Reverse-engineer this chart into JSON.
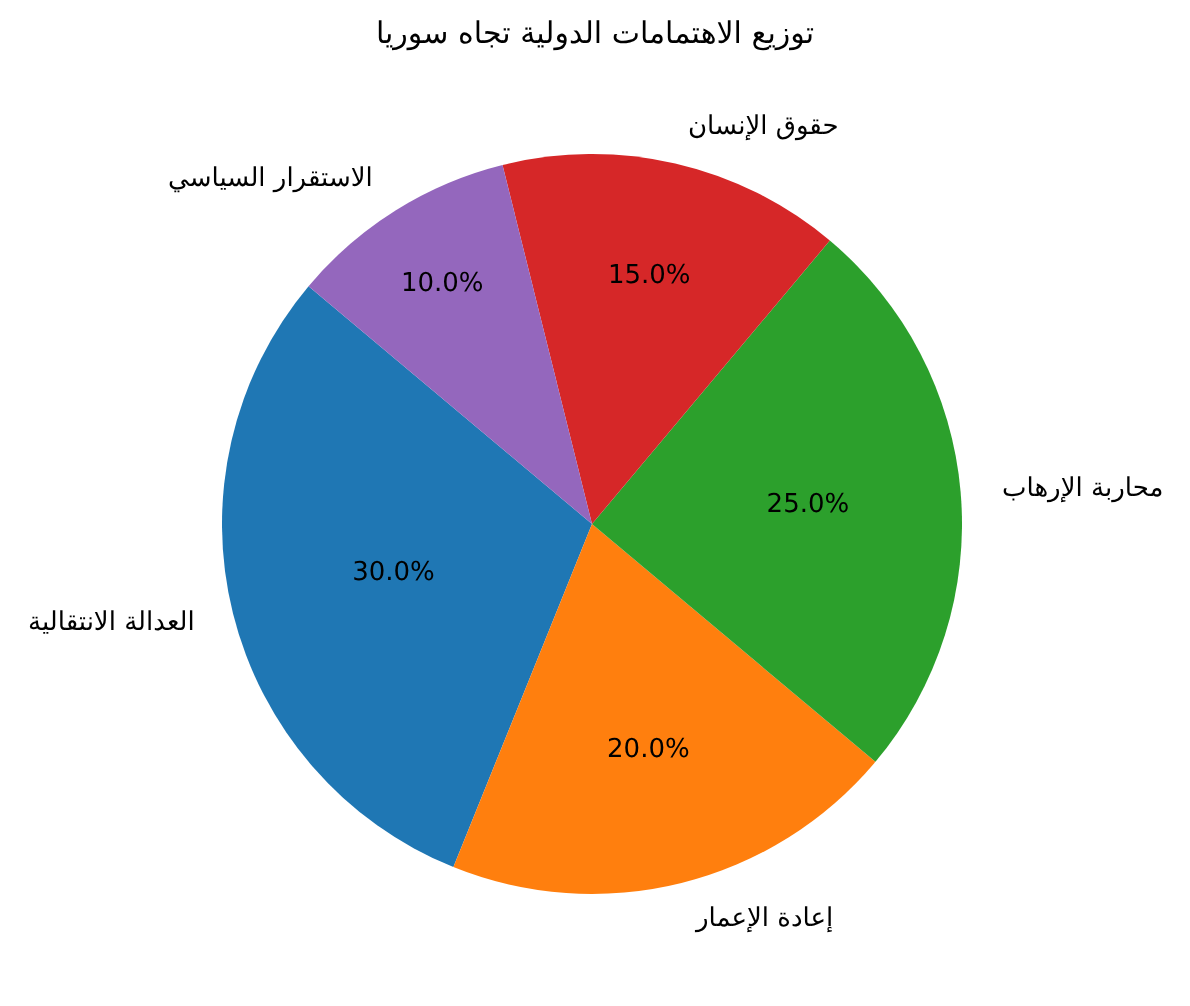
{
  "chart_data": {
    "type": "pie",
    "title": "توزيع الاهتمامات الدولية تجاه سوريا",
    "categories": [
      "العدالة الانتقالية",
      "إعادة الإعمار",
      "محاربة الإرهاب",
      "حقوق الإنسان",
      "الاستقرار السياسي"
    ],
    "values": [
      30,
      20,
      25,
      15,
      10
    ],
    "colors": [
      "#1f77b4",
      "#ff7f0e",
      "#2ca02c",
      "#d62728",
      "#9467bd"
    ],
    "value_labels": [
      "30.0%",
      "20.0%",
      "25.0%",
      "15.0%",
      "10.0%"
    ],
    "legend": false
  }
}
